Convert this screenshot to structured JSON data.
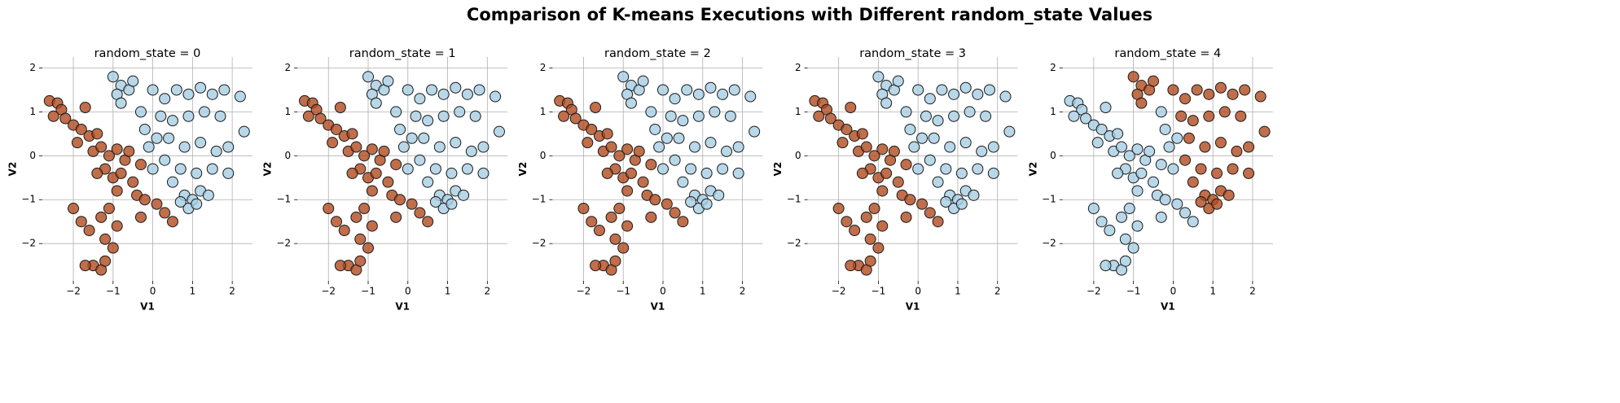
{
  "title": "Comparison of K-means Executions with Different random_state Values",
  "chart_data": [
    {
      "type": "scatter",
      "title": "random_state = 0",
      "xlabel": "V1",
      "ylabel": "V2",
      "xlim": [
        -2.78,
        2.51
      ],
      "ylim": [
        -2.85,
        2.25
      ],
      "xticks": [
        {
          "value": -2,
          "label": "−2"
        },
        {
          "value": -1,
          "label": "−1"
        },
        0,
        1,
        2
      ],
      "yticks": [
        {
          "value": -2,
          "label": "−2"
        },
        {
          "value": -1,
          "label": "−1"
        },
        0,
        1,
        2
      ],
      "grid": true,
      "series": [
        {
          "color": "#b04a1e",
          "x": [
            -2.6,
            -2.4,
            -2.3,
            -2.5,
            -2.2,
            -2.0,
            -1.8,
            -1.6,
            -1.9,
            -1.4,
            -1.7,
            -1.5,
            -1.3,
            -1.1,
            -0.9,
            -0.7,
            -1.2,
            -1.0,
            -0.8,
            -0.5,
            -0.3,
            -0.6,
            -1.4,
            -0.4,
            -0.9,
            -2.0,
            -1.8,
            -1.6,
            -1.3,
            -1.1,
            -0.9,
            -1.2,
            -1.0,
            -1.5,
            -1.3,
            -1.7,
            -1.2,
            -0.2,
            0.1,
            0.3,
            0.5,
            -0.3
          ],
          "values": [
            1.25,
            1.2,
            1.05,
            0.9,
            0.85,
            0.7,
            0.6,
            0.45,
            0.3,
            0.5,
            1.1,
            0.1,
            0.2,
            0.0,
            0.15,
            -0.1,
            -0.3,
            -0.5,
            -0.4,
            -0.6,
            -0.2,
            0.1,
            -0.4,
            -0.9,
            -0.8,
            -1.2,
            -1.5,
            -1.7,
            -1.4,
            -1.2,
            -1.6,
            -1.9,
            -2.1,
            -2.5,
            -2.6,
            -2.5,
            -2.4,
            -1.0,
            -1.1,
            -1.3,
            -1.5,
            -1.4
          ]
        },
        {
          "color": "#a6cee3",
          "x": [
            0.8,
            1.0,
            1.2,
            1.4,
            0.9,
            1.1,
            0.7,
            -1.0,
            -0.8,
            -0.6,
            -0.9,
            -0.5,
            -0.8,
            0.0,
            0.3,
            0.6,
            0.9,
            1.2,
            1.5,
            1.8,
            0.2,
            0.5,
            0.9,
            1.3,
            1.7,
            2.2,
            2.3,
            1.9,
            0.4,
            0.8,
            1.2,
            1.6,
            0.3,
            0.7,
            1.1,
            1.5,
            1.9,
            0.5,
            -0.1,
            0.0,
            -0.2,
            0.1,
            -0.3
          ],
          "values": [
            -0.9,
            -1.0,
            -0.8,
            -0.9,
            -1.2,
            -1.1,
            -1.05,
            1.8,
            1.6,
            1.5,
            1.4,
            1.7,
            1.2,
            1.5,
            1.3,
            1.5,
            1.4,
            1.55,
            1.4,
            1.5,
            0.9,
            0.8,
            0.9,
            1.0,
            0.9,
            1.35,
            0.55,
            0.2,
            0.4,
            0.2,
            0.3,
            0.1,
            -0.1,
            -0.3,
            -0.4,
            -0.3,
            -0.4,
            -0.6,
            0.2,
            -0.3,
            0.6,
            0.4,
            1.0
          ]
        }
      ]
    },
    {
      "type": "scatter",
      "title": "random_state = 1",
      "xlabel": "V1",
      "ylabel": "V2",
      "xlim": [
        -2.78,
        2.51
      ],
      "ylim": [
        -2.85,
        2.25
      ],
      "xticks": [
        {
          "value": -2,
          "label": "−2"
        },
        {
          "value": -1,
          "label": "−1"
        },
        0,
        1,
        2
      ],
      "yticks": [
        {
          "value": -2,
          "label": "−2"
        },
        {
          "value": -1,
          "label": "−1"
        },
        0,
        1,
        2
      ],
      "grid": true,
      "series": [
        {
          "color": "#b04a1e",
          "x": [
            -2.6,
            -2.4,
            -2.3,
            -2.5,
            -2.2,
            -2.0,
            -1.8,
            -1.6,
            -1.9,
            -1.4,
            -1.7,
            -1.5,
            -1.3,
            -1.1,
            -0.9,
            -0.7,
            -1.2,
            -1.0,
            -0.8,
            -0.5,
            -0.3,
            -0.6,
            -1.4,
            -0.4,
            -0.9,
            -2.0,
            -1.8,
            -1.6,
            -1.3,
            -1.1,
            -0.9,
            -1.2,
            -1.0,
            -1.5,
            -1.3,
            -1.7,
            -1.2,
            -0.2,
            0.1,
            0.3,
            0.5,
            -0.3
          ],
          "values": [
            1.25,
            1.2,
            1.05,
            0.9,
            0.85,
            0.7,
            0.6,
            0.45,
            0.3,
            0.5,
            1.1,
            0.1,
            0.2,
            0.0,
            0.15,
            -0.1,
            -0.3,
            -0.5,
            -0.4,
            -0.6,
            -0.2,
            0.1,
            -0.4,
            -0.9,
            -0.8,
            -1.2,
            -1.5,
            -1.7,
            -1.4,
            -1.2,
            -1.6,
            -1.9,
            -2.1,
            -2.5,
            -2.6,
            -2.5,
            -2.4,
            -1.0,
            -1.1,
            -1.3,
            -1.5,
            -1.4
          ]
        },
        {
          "color": "#a6cee3",
          "x": [
            0.8,
            1.0,
            1.2,
            1.4,
            0.9,
            1.1,
            0.7,
            -1.0,
            -0.8,
            -0.6,
            -0.9,
            -0.5,
            -0.8,
            0.0,
            0.3,
            0.6,
            0.9,
            1.2,
            1.5,
            1.8,
            0.2,
            0.5,
            0.9,
            1.3,
            1.7,
            2.2,
            2.3,
            1.9,
            0.4,
            0.8,
            1.2,
            1.6,
            0.3,
            0.7,
            1.1,
            1.5,
            1.9,
            0.5,
            -0.1,
            0.0,
            -0.2,
            0.1,
            -0.3
          ],
          "values": [
            -0.9,
            -1.0,
            -0.8,
            -0.9,
            -1.2,
            -1.1,
            -1.05,
            1.8,
            1.6,
            1.5,
            1.4,
            1.7,
            1.2,
            1.5,
            1.3,
            1.5,
            1.4,
            1.55,
            1.4,
            1.5,
            0.9,
            0.8,
            0.9,
            1.0,
            0.9,
            1.35,
            0.55,
            0.2,
            0.4,
            0.2,
            0.3,
            0.1,
            -0.1,
            -0.3,
            -0.4,
            -0.3,
            -0.4,
            -0.6,
            0.2,
            -0.3,
            0.6,
            0.4,
            1.0
          ]
        }
      ]
    },
    {
      "type": "scatter",
      "title": "random_state = 2",
      "xlabel": "V1",
      "ylabel": "V2",
      "xlim": [
        -2.78,
        2.51
      ],
      "ylim": [
        -2.85,
        2.25
      ],
      "xticks": [
        {
          "value": -2,
          "label": "−2"
        },
        {
          "value": -1,
          "label": "−1"
        },
        0,
        1,
        2
      ],
      "yticks": [
        {
          "value": -2,
          "label": "−2"
        },
        {
          "value": -1,
          "label": "−1"
        },
        0,
        1,
        2
      ],
      "grid": true,
      "series": [
        {
          "color": "#b04a1e",
          "x": [
            -2.6,
            -2.4,
            -2.3,
            -2.5,
            -2.2,
            -2.0,
            -1.8,
            -1.6,
            -1.9,
            -1.4,
            -1.7,
            -1.5,
            -1.3,
            -1.1,
            -0.9,
            -0.7,
            -1.2,
            -1.0,
            -0.8,
            -0.5,
            -0.3,
            -0.6,
            -1.4,
            -0.4,
            -0.9,
            -2.0,
            -1.8,
            -1.6,
            -1.3,
            -1.1,
            -0.9,
            -1.2,
            -1.0,
            -1.5,
            -1.3,
            -1.7,
            -1.2,
            -0.2,
            0.1,
            0.3,
            0.5,
            -0.3
          ],
          "values": [
            1.25,
            1.2,
            1.05,
            0.9,
            0.85,
            0.7,
            0.6,
            0.45,
            0.3,
            0.5,
            1.1,
            0.1,
            0.2,
            0.0,
            0.15,
            -0.1,
            -0.3,
            -0.5,
            -0.4,
            -0.6,
            -0.2,
            0.1,
            -0.4,
            -0.9,
            -0.8,
            -1.2,
            -1.5,
            -1.7,
            -1.4,
            -1.2,
            -1.6,
            -1.9,
            -2.1,
            -2.5,
            -2.6,
            -2.5,
            -2.4,
            -1.0,
            -1.1,
            -1.3,
            -1.5,
            -1.4
          ]
        },
        {
          "color": "#a6cee3",
          "x": [
            0.8,
            1.0,
            1.2,
            1.4,
            0.9,
            1.1,
            0.7,
            -1.0,
            -0.8,
            -0.6,
            -0.9,
            -0.5,
            -0.8,
            0.0,
            0.3,
            0.6,
            0.9,
            1.2,
            1.5,
            1.8,
            0.2,
            0.5,
            0.9,
            1.3,
            1.7,
            2.2,
            2.3,
            1.9,
            0.4,
            0.8,
            1.2,
            1.6,
            0.3,
            0.7,
            1.1,
            1.5,
            1.9,
            0.5,
            -0.1,
            0.0,
            -0.2,
            0.1,
            -0.3
          ],
          "values": [
            -0.9,
            -1.0,
            -0.8,
            -0.9,
            -1.2,
            -1.1,
            -1.05,
            1.8,
            1.6,
            1.5,
            1.4,
            1.7,
            1.2,
            1.5,
            1.3,
            1.5,
            1.4,
            1.55,
            1.4,
            1.5,
            0.9,
            0.8,
            0.9,
            1.0,
            0.9,
            1.35,
            0.55,
            0.2,
            0.4,
            0.2,
            0.3,
            0.1,
            -0.1,
            -0.3,
            -0.4,
            -0.3,
            -0.4,
            -0.6,
            0.2,
            -0.3,
            0.6,
            0.4,
            1.0
          ]
        }
      ]
    },
    {
      "type": "scatter",
      "title": "random_state = 3",
      "xlabel": "V1",
      "ylabel": "V2",
      "xlim": [
        -2.78,
        2.51
      ],
      "ylim": [
        -2.85,
        2.25
      ],
      "xticks": [
        {
          "value": -2,
          "label": "−2"
        },
        {
          "value": -1,
          "label": "−1"
        },
        0,
        1,
        2
      ],
      "yticks": [
        {
          "value": -2,
          "label": "−2"
        },
        {
          "value": -1,
          "label": "−1"
        },
        0,
        1,
        2
      ],
      "grid": true,
      "series": [
        {
          "color": "#b04a1e",
          "x": [
            -2.6,
            -2.4,
            -2.3,
            -2.5,
            -2.2,
            -2.0,
            -1.8,
            -1.6,
            -1.9,
            -1.4,
            -1.7,
            -1.5,
            -1.3,
            -1.1,
            -0.9,
            -0.7,
            -1.2,
            -1.0,
            -0.8,
            -0.5,
            -0.3,
            -0.6,
            -1.4,
            -0.4,
            -0.9,
            -2.0,
            -1.8,
            -1.6,
            -1.3,
            -1.1,
            -0.9,
            -1.2,
            -1.0,
            -1.5,
            -1.3,
            -1.7,
            -1.2,
            -0.2,
            0.1,
            0.3,
            0.5,
            -0.3
          ],
          "values": [
            1.25,
            1.2,
            1.05,
            0.9,
            0.85,
            0.7,
            0.6,
            0.45,
            0.3,
            0.5,
            1.1,
            0.1,
            0.2,
            0.0,
            0.15,
            -0.1,
            -0.3,
            -0.5,
            -0.4,
            -0.6,
            -0.2,
            0.1,
            -0.4,
            -0.9,
            -0.8,
            -1.2,
            -1.5,
            -1.7,
            -1.4,
            -1.2,
            -1.6,
            -1.9,
            -2.1,
            -2.5,
            -2.6,
            -2.5,
            -2.4,
            -1.0,
            -1.1,
            -1.3,
            -1.5,
            -1.4
          ]
        },
        {
          "color": "#a6cee3",
          "x": [
            0.8,
            1.0,
            1.2,
            1.4,
            0.9,
            1.1,
            0.7,
            -1.0,
            -0.8,
            -0.6,
            -0.9,
            -0.5,
            -0.8,
            0.0,
            0.3,
            0.6,
            0.9,
            1.2,
            1.5,
            1.8,
            0.2,
            0.5,
            0.9,
            1.3,
            1.7,
            2.2,
            2.3,
            1.9,
            0.4,
            0.8,
            1.2,
            1.6,
            0.3,
            0.7,
            1.1,
            1.5,
            1.9,
            0.5,
            -0.1,
            0.0,
            -0.2,
            0.1,
            -0.3
          ],
          "values": [
            -0.9,
            -1.0,
            -0.8,
            -0.9,
            -1.2,
            -1.1,
            -1.05,
            1.8,
            1.6,
            1.5,
            1.4,
            1.7,
            1.2,
            1.5,
            1.3,
            1.5,
            1.4,
            1.55,
            1.4,
            1.5,
            0.9,
            0.8,
            0.9,
            1.0,
            0.9,
            1.35,
            0.55,
            0.2,
            0.4,
            0.2,
            0.3,
            0.1,
            -0.1,
            -0.3,
            -0.4,
            -0.3,
            -0.4,
            -0.6,
            0.2,
            -0.3,
            0.6,
            0.4,
            1.0
          ]
        }
      ]
    },
    {
      "type": "scatter",
      "title": "random_state = 4",
      "xlabel": "V1",
      "ylabel": "V2",
      "xlim": [
        -2.78,
        2.51
      ],
      "ylim": [
        -2.85,
        2.25
      ],
      "xticks": [
        {
          "value": -2,
          "label": "−2"
        },
        {
          "value": -1,
          "label": "−1"
        },
        0,
        1,
        2
      ],
      "yticks": [
        {
          "value": -2,
          "label": "−2"
        },
        {
          "value": -1,
          "label": "−1"
        },
        0,
        1,
        2
      ],
      "grid": true,
      "series": [
        {
          "color": "#a6cee3",
          "x": [
            -2.6,
            -2.4,
            -2.3,
            -2.5,
            -2.2,
            -2.0,
            -1.8,
            -1.6,
            -1.9,
            -1.4,
            -1.7,
            -1.5,
            -1.3,
            -1.1,
            -0.9,
            -0.7,
            -1.2,
            -1.0,
            -0.8,
            -0.5,
            -0.3,
            -0.6,
            -1.4,
            -0.4,
            -0.9,
            -2.0,
            -1.8,
            -1.6,
            -1.3,
            -1.1,
            -0.9,
            -1.2,
            -1.0,
            -1.5,
            -1.3,
            -1.7,
            -1.2,
            -0.2,
            0.1,
            0.3,
            0.5,
            -0.3,
            -0.1,
            0.0,
            -0.2,
            0.1,
            -0.3
          ],
          "values": [
            1.25,
            1.2,
            1.05,
            0.9,
            0.85,
            0.7,
            0.6,
            0.45,
            0.3,
            0.5,
            1.1,
            0.1,
            0.2,
            0.0,
            0.15,
            -0.1,
            -0.3,
            -0.5,
            -0.4,
            -0.6,
            -0.2,
            0.1,
            -0.4,
            -0.9,
            -0.8,
            -1.2,
            -1.5,
            -1.7,
            -1.4,
            -1.2,
            -1.6,
            -1.9,
            -2.1,
            -2.5,
            -2.6,
            -2.5,
            -2.4,
            -1.0,
            -1.1,
            -1.3,
            -1.5,
            -1.4,
            0.2,
            -0.3,
            0.6,
            0.4,
            1.0
          ]
        },
        {
          "color": "#b04a1e",
          "x": [
            0.8,
            1.0,
            1.2,
            1.4,
            0.9,
            1.1,
            0.7,
            -1.0,
            -0.8,
            -0.6,
            -0.9,
            -0.5,
            -0.8,
            0.0,
            0.3,
            0.6,
            0.9,
            1.2,
            1.5,
            1.8,
            0.2,
            0.5,
            0.9,
            1.3,
            1.7,
            2.2,
            2.3,
            1.9,
            0.4,
            0.8,
            1.2,
            1.6,
            0.3,
            0.7,
            1.1,
            1.5,
            1.9,
            0.5
          ],
          "values": [
            -0.9,
            -1.0,
            -0.8,
            -0.9,
            -1.2,
            -1.1,
            -1.05,
            1.8,
            1.6,
            1.5,
            1.4,
            1.7,
            1.2,
            1.5,
            1.3,
            1.5,
            1.4,
            1.55,
            1.4,
            1.5,
            0.9,
            0.8,
            0.9,
            1.0,
            0.9,
            1.35,
            0.55,
            0.2,
            0.4,
            0.2,
            0.3,
            0.1,
            -0.1,
            -0.3,
            -0.4,
            -0.3,
            -0.4,
            -0.6
          ]
        }
      ]
    }
  ]
}
